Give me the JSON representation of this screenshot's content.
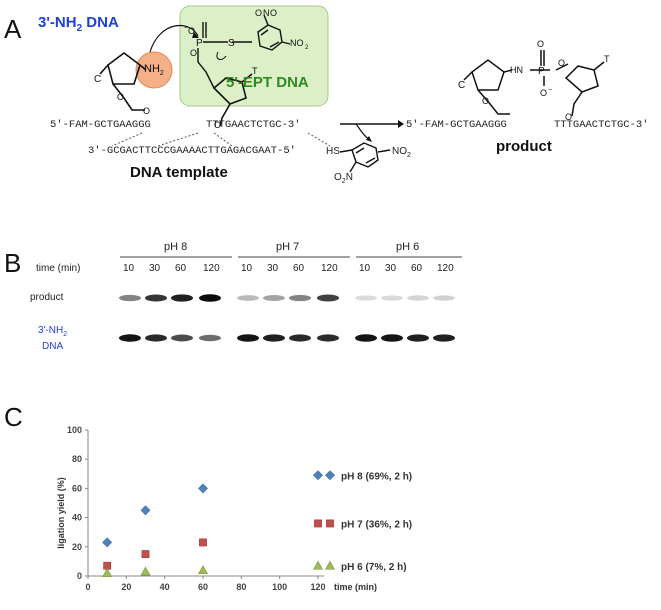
{
  "panels": {
    "a": "A",
    "b": "B",
    "c": "C"
  },
  "scheme": {
    "nh2_dna_label": "3'-NH",
    "nh2_dna_sub": "2",
    "nh2_dna_suffix": " DNA",
    "ept_dna_label": "5'-EPT DNA",
    "nh2_group": "NH",
    "nh2_group_sub": "2",
    "strand_left": "5'-FAM-GCTGAAGGG",
    "strand_right": "TTTGAACTCTGC-3'",
    "template_strand": "3'-GCGACTTCCCGAAAACTTGAGACGAAT-5'",
    "template_label": "DNA template",
    "product_left": "5'-FAM-GCTGAAGGG",
    "product_right": "TTTGAACTCTGC-3'",
    "product_label": "product",
    "byproduct_sh": "HS",
    "byproduct_no2_a": "NO",
    "byproduct_no2_b": "O",
    "colors": {
      "nh2_blue": "#1f3fd6",
      "ept_green": "#2e8b1e",
      "ept_box": "#dcefc6",
      "amine_ball": "#f6b088"
    }
  },
  "gel": {
    "ph_labels": [
      "pH 8",
      "pH 7",
      "pH 6"
    ],
    "time_label": "time (min)",
    "times": [
      "10",
      "30",
      "60",
      "120",
      "10",
      "30",
      "60",
      "120",
      "10",
      "30",
      "60",
      "120"
    ],
    "row_product": "product",
    "row_dna_line1": "3'-NH",
    "row_dna_line1_sub": "2",
    "row_dna_line2": "DNA",
    "product_intensity": [
      0.45,
      0.8,
      0.9,
      1.0,
      0.2,
      0.3,
      0.45,
      0.75,
      0.05,
      0.06,
      0.08,
      0.1
    ],
    "dna_intensity": [
      0.95,
      0.85,
      0.7,
      0.55,
      0.95,
      0.9,
      0.85,
      0.85,
      0.95,
      0.95,
      0.9,
      0.9
    ]
  },
  "chart_data": {
    "type": "scatter",
    "xlabel": "time (min)",
    "ylabel": "ligation yield (%)",
    "xlim": [
      0,
      120
    ],
    "ylim": [
      0,
      100
    ],
    "xticks": [
      "0",
      "20",
      "40",
      "60",
      "80",
      "100",
      "120"
    ],
    "yticks": [
      "0",
      "20",
      "40",
      "60",
      "80",
      "100"
    ],
    "grid": false,
    "legend_position": "right",
    "series": [
      {
        "name": "pH 8 (69%, 2 h)",
        "marker": "diamond",
        "color": "#4f81bd",
        "x": [
          10,
          30,
          60,
          120
        ],
        "y": [
          23,
          45,
          60,
          69
        ]
      },
      {
        "name": "pH 7 (36%, 2 h)",
        "marker": "square",
        "color": "#c0504d",
        "x": [
          10,
          30,
          60,
          120
        ],
        "y": [
          7,
          15,
          23,
          36
        ]
      },
      {
        "name": "pH 6 (7%, 2 h)",
        "marker": "triangle",
        "color": "#9bbb59",
        "x": [
          10,
          30,
          60,
          120
        ],
        "y": [
          2,
          3,
          4,
          7
        ]
      }
    ]
  }
}
